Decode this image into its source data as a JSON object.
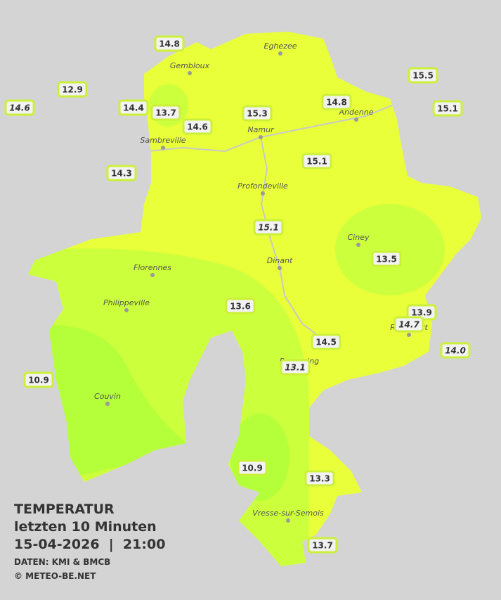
{
  "title": "TEMPERATUR",
  "subtitle": "letzten 10 Minuten",
  "datetime": "15-04-2026  |  21:00",
  "source": "DATEN: KMI & BMCB",
  "copyright": "© METEO-BE.NET",
  "cities": [
    "Eghezee",
    "Gembloux",
    "Andenne",
    "Namur",
    "Sambreville",
    "Profondeville",
    "Ciney",
    "Dinant",
    "Florennes",
    "Philippeville",
    "Rochefort",
    "Beauraing",
    "Couvin",
    "Vresse-sur-Semois"
  ],
  "stations": [
    {
      "label": "14.8",
      "italic": false
    },
    {
      "label": "12.9",
      "italic": false
    },
    {
      "label": "14.6",
      "italic": true
    },
    {
      "label": "14.4",
      "italic": false
    },
    {
      "label": "13.7",
      "italic": false
    },
    {
      "label": "15.3",
      "italic": false
    },
    {
      "label": "14.8",
      "italic": false
    },
    {
      "label": "15.5",
      "italic": false
    },
    {
      "label": "15.1",
      "italic": false
    },
    {
      "label": "14.6",
      "italic": false
    },
    {
      "label": "14.3",
      "italic": false
    },
    {
      "label": "15.1",
      "italic": false
    },
    {
      "label": "15.1",
      "italic": true
    },
    {
      "label": "13.5",
      "italic": false
    },
    {
      "label": "13.6",
      "italic": false
    },
    {
      "label": "13.9",
      "italic": false
    },
    {
      "label": "14.7",
      "italic": true
    },
    {
      "label": "14.5",
      "italic": false
    },
    {
      "label": "14.0",
      "italic": true
    },
    {
      "label": "13.1",
      "italic": true
    },
    {
      "label": "10.9",
      "italic": false
    },
    {
      "label": "10.9",
      "italic": false
    },
    {
      "label": "13.3",
      "italic": false
    },
    {
      "label": "13.7",
      "italic": false
    }
  ]
}
